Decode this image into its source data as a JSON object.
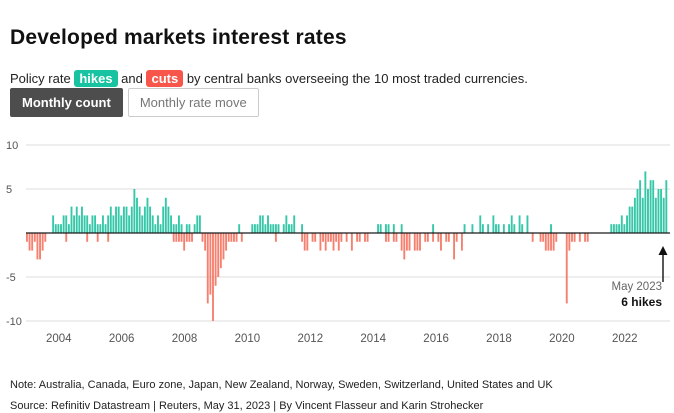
{
  "page": {
    "title": "Developed markets interest rates",
    "subtitle_prefix": "Policy rate ",
    "subtitle_hikes": "hikes",
    "subtitle_and": " and ",
    "subtitle_cuts": "cuts",
    "subtitle_suffix": " by central banks overseeing the 10 most traded currencies.",
    "buttons": [
      {
        "label": "Monthly count",
        "active": true
      },
      {
        "label": "Monthly rate move",
        "active": false
      }
    ],
    "note": "Note: Australia, Canada, Euro zone, Japan, New Zealand, Norway, Sweden, Switzerland, United States and UK",
    "source": "Source: Refinitiv Datastream | Reuters, May 31, 2023 | By Vincent Flasseur and Karin Strohecker"
  },
  "colors": {
    "hikes": "#17c3a0",
    "cuts": "#f8564a",
    "hikes_bar": "#35c7a8",
    "cuts_bar": "#f5806f",
    "button_active": "#4d4d4d",
    "zero_line": "#1a1a1a",
    "grid": "#dddddd",
    "tick_text": "#555555"
  },
  "chart_data": {
    "type": "bar",
    "title": "Developed markets interest rates",
    "xlabel": "",
    "ylabel": "",
    "start_month": "2003-01",
    "end_month": "2023-05",
    "ylim": [
      -11,
      11
    ],
    "yticks": [
      10,
      5,
      -5,
      -10
    ],
    "xticks": [
      2004,
      2006,
      2008,
      2010,
      2012,
      2014,
      2016,
      2018,
      2020,
      2022
    ],
    "grid": true,
    "annotation": {
      "date": "May 2023",
      "label": "6 hikes"
    },
    "series": [
      {
        "name": "hikes",
        "color_key": "hikes_bar",
        "values": [
          0,
          0,
          0,
          0,
          0,
          0,
          0,
          0,
          0,
          0,
          2,
          1,
          1,
          1,
          2,
          2,
          1,
          3,
          2,
          3,
          2,
          3,
          2,
          2,
          1,
          2,
          2,
          1,
          1,
          2,
          1,
          2,
          3,
          2,
          3,
          3,
          2,
          3,
          3,
          2,
          3,
          5,
          4,
          3,
          2,
          3,
          4,
          3,
          2,
          1,
          2,
          1,
          3,
          4,
          3,
          2,
          1,
          1,
          2,
          1,
          0,
          1,
          1,
          0,
          1,
          2,
          2,
          0,
          0,
          0,
          0,
          0,
          0,
          0,
          0,
          0,
          0,
          0,
          0,
          0,
          0,
          1,
          0,
          0,
          0,
          0,
          1,
          1,
          1,
          2,
          2,
          1,
          2,
          1,
          1,
          1,
          1,
          0,
          1,
          2,
          1,
          1,
          2,
          0,
          0,
          1,
          0,
          0,
          0,
          0,
          0,
          0,
          0,
          0,
          0,
          0,
          0,
          0,
          0,
          0,
          0,
          0,
          0,
          0,
          0,
          0,
          0,
          0,
          0,
          0,
          0,
          0,
          0,
          0,
          1,
          1,
          0,
          1,
          1,
          0,
          1,
          0,
          0,
          1,
          0,
          0,
          0,
          0,
          0,
          0,
          0,
          0,
          0,
          0,
          0,
          1,
          0,
          0,
          0,
          0,
          0,
          0,
          0,
          0,
          0,
          0,
          0,
          1,
          0,
          0,
          1,
          0,
          0,
          2,
          1,
          0,
          1,
          0,
          2,
          1,
          1,
          0,
          1,
          0,
          1,
          2,
          1,
          0,
          2,
          1,
          0,
          2,
          0,
          0,
          0,
          0,
          0,
          0,
          0,
          0,
          1,
          0,
          0,
          0,
          0,
          0,
          0,
          0,
          0,
          0,
          0,
          0,
          0,
          0,
          0,
          0,
          0,
          0,
          0,
          0,
          0,
          0,
          0,
          1,
          1,
          1,
          1,
          2,
          1,
          2,
          3,
          3,
          4,
          5,
          6,
          4,
          7,
          5,
          6,
          6,
          4,
          5,
          5,
          4,
          6
        ]
      },
      {
        "name": "cuts",
        "color_key": "cuts_bar",
        "values": [
          -1,
          -2,
          -2,
          -1,
          -3,
          -3,
          -2,
          -1,
          0,
          0,
          0,
          0,
          0,
          0,
          0,
          -1,
          0,
          0,
          0,
          0,
          0,
          0,
          0,
          -1,
          0,
          0,
          0,
          -1,
          0,
          0,
          0,
          -1,
          0,
          0,
          0,
          0,
          0,
          0,
          0,
          0,
          0,
          0,
          0,
          0,
          0,
          0,
          0,
          0,
          0,
          0,
          0,
          0,
          0,
          0,
          0,
          0,
          -1,
          -1,
          -1,
          -1,
          -2,
          -1,
          -1,
          -1,
          0,
          0,
          0,
          -1,
          -2,
          -8,
          -7,
          -10,
          -6,
          -5,
          -4,
          -3,
          -2,
          -1,
          -1,
          -1,
          -1,
          0,
          -1,
          0,
          0,
          0,
          0,
          0,
          0,
          0,
          0,
          0,
          0,
          0,
          0,
          -1,
          0,
          0,
          0,
          0,
          0,
          0,
          0,
          0,
          0,
          -1,
          -2,
          -2,
          0,
          -1,
          -1,
          0,
          -2,
          -1,
          -2,
          -1,
          -1,
          -2,
          -1,
          -2,
          -1,
          0,
          -1,
          0,
          -2,
          0,
          -1,
          -1,
          0,
          -1,
          -1,
          0,
          0,
          0,
          0,
          0,
          0,
          -1,
          -1,
          0,
          -1,
          -1,
          0,
          -2,
          -3,
          -2,
          -2,
          0,
          -2,
          -2,
          -2,
          0,
          -1,
          -1,
          0,
          -1,
          0,
          -1,
          -2,
          0,
          -1,
          -1,
          0,
          -3,
          -1,
          0,
          -2,
          0,
          0,
          0,
          0,
          0,
          0,
          0,
          0,
          0,
          0,
          0,
          0,
          0,
          0,
          0,
          0,
          0,
          0,
          0,
          0,
          0,
          0,
          0,
          0,
          0,
          0,
          -1,
          0,
          0,
          -1,
          -1,
          -2,
          -2,
          -2,
          -2,
          -1,
          0,
          0,
          0,
          -8,
          -2,
          -1,
          -1,
          0,
          -1,
          0,
          -1,
          -1,
          0,
          0,
          0,
          0,
          0,
          0,
          0,
          0,
          0,
          0,
          0,
          0,
          0,
          0,
          0,
          0,
          0,
          0,
          0,
          0,
          0,
          0,
          0,
          0,
          0,
          0,
          0,
          0,
          0,
          0
        ]
      }
    ]
  }
}
